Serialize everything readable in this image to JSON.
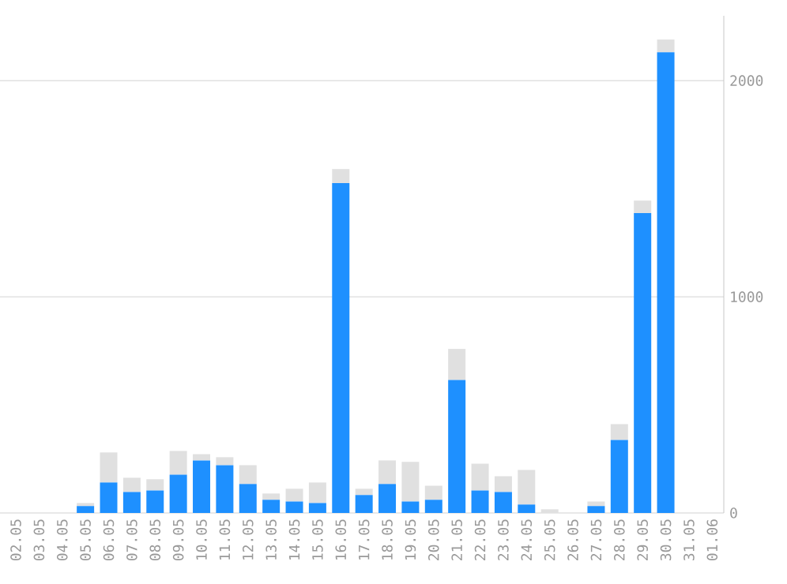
{
  "chart_data": {
    "type": "bar",
    "stacked": true,
    "grid": "y",
    "categories": [
      "02.05",
      "03.05",
      "04.05",
      "05.05",
      "06.05",
      "07.05",
      "08.05",
      "09.05",
      "10.05",
      "11.05",
      "12.05",
      "13.05",
      "14.05",
      "15.05",
      "16.05",
      "17.05",
      "18.05",
      "19.05",
      "20.05",
      "21.05",
      "22.05",
      "23.05",
      "24.05",
      "25.05",
      "26.05",
      "27.05",
      "28.05",
      "29.05",
      "30.05",
      "31.05",
      "01.06"
    ],
    "series": [
      {
        "color": "#1e90ff",
        "values": [
          0,
          0,
          0,
          32,
          141,
          97,
          104,
          177,
          243,
          221,
          134,
          61,
          53,
          46,
          1526,
          83,
          134,
          53,
          61,
          615,
          104,
          97,
          39,
          0,
          0,
          32,
          338,
          1387,
          2131,
          0,
          0
        ]
      },
      {
        "color": "#e0e0e0",
        "values": [
          0,
          0,
          0,
          14,
          139,
          66,
          52,
          110,
          29,
          37,
          87,
          29,
          59,
          95,
          65,
          29,
          109,
          183,
          65,
          144,
          124,
          73,
          160,
          17,
          0,
          21,
          73,
          58,
          59,
          0,
          0
        ]
      }
    ],
    "ylim": [
      0,
      2300
    ],
    "yticks": [
      0,
      1000,
      2000
    ]
  }
}
